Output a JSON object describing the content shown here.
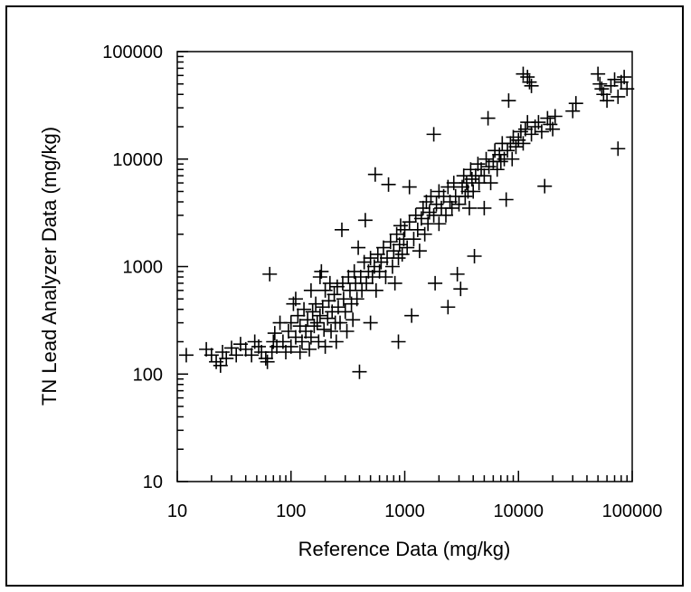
{
  "chart_data": {
    "type": "scatter",
    "title": "",
    "xlabel": "Reference Data (mg/kg)",
    "ylabel": "TN Lead Analyzer Data (mg/kg)",
    "xscale": "log",
    "yscale": "log",
    "xlim": [
      10,
      100000
    ],
    "ylim": [
      10,
      100000
    ],
    "xticks": [
      "10",
      "100",
      "1000",
      "10000",
      "100000"
    ],
    "yticks": [
      "10",
      "100",
      "1000",
      "10000",
      "100000"
    ],
    "marker": "plus",
    "color": "#000000",
    "grid": false,
    "legend": false,
    "series": [
      {
        "points": [
          [
            12,
            150
          ],
          [
            18,
            170
          ],
          [
            20,
            150
          ],
          [
            22,
            130
          ],
          [
            24,
            120
          ],
          [
            25,
            160
          ],
          [
            27,
            140
          ],
          [
            30,
            175
          ],
          [
            33,
            150
          ],
          [
            36,
            190
          ],
          [
            40,
            170
          ],
          [
            45,
            150
          ],
          [
            48,
            200
          ],
          [
            52,
            180
          ],
          [
            55,
            160
          ],
          [
            60,
            140
          ],
          [
            62,
            130
          ],
          [
            65,
            850
          ],
          [
            68,
            160
          ],
          [
            70,
            200
          ],
          [
            72,
            240
          ],
          [
            75,
            180
          ],
          [
            80,
            300
          ],
          [
            85,
            200
          ],
          [
            90,
            160
          ],
          [
            95,
            250
          ],
          [
            100,
            300
          ],
          [
            100,
            180
          ],
          [
            105,
            450
          ],
          [
            110,
            500
          ],
          [
            110,
            220
          ],
          [
            115,
            350
          ],
          [
            120,
            280
          ],
          [
            120,
            160
          ],
          [
            125,
            200
          ],
          [
            130,
            400
          ],
          [
            135,
            250
          ],
          [
            140,
            320
          ],
          [
            145,
            170
          ],
          [
            150,
            600
          ],
          [
            150,
            220
          ],
          [
            155,
            380
          ],
          [
            160,
            280
          ],
          [
            165,
            450
          ],
          [
            170,
            300
          ],
          [
            175,
            200
          ],
          [
            180,
            800
          ],
          [
            180,
            350
          ],
          [
            185,
            900
          ],
          [
            190,
            420
          ],
          [
            195,
            260
          ],
          [
            200,
            600
          ],
          [
            200,
            180
          ],
          [
            210,
            330
          ],
          [
            215,
            480
          ],
          [
            220,
            700
          ],
          [
            225,
            250
          ],
          [
            230,
            380
          ],
          [
            240,
            550
          ],
          [
            245,
            300
          ],
          [
            250,
            200
          ],
          [
            255,
            650
          ],
          [
            260,
            420
          ],
          [
            270,
            300
          ],
          [
            280,
            2200
          ],
          [
            285,
            700
          ],
          [
            290,
            500
          ],
          [
            300,
            380
          ],
          [
            310,
            250
          ],
          [
            320,
            800
          ],
          [
            330,
            600
          ],
          [
            340,
            450
          ],
          [
            350,
            320
          ],
          [
            360,
            900
          ],
          [
            370,
            700
          ],
          [
            380,
            500
          ],
          [
            390,
            1500
          ],
          [
            400,
            105
          ],
          [
            410,
            800
          ],
          [
            420,
            600
          ],
          [
            440,
            1100
          ],
          [
            450,
            2700
          ],
          [
            460,
            700
          ],
          [
            480,
            900
          ],
          [
            500,
            300
          ],
          [
            500,
            1200
          ],
          [
            520,
            800
          ],
          [
            540,
            1000
          ],
          [
            550,
            7200
          ],
          [
            560,
            600
          ],
          [
            580,
            1300
          ],
          [
            600,
            900
          ],
          [
            620,
            1100
          ],
          [
            650,
            1500
          ],
          [
            680,
            800
          ],
          [
            700,
            1200
          ],
          [
            720,
            5800
          ],
          [
            750,
            1700
          ],
          [
            780,
            1000
          ],
          [
            800,
            1400
          ],
          [
            820,
            700
          ],
          [
            850,
            2000
          ],
          [
            880,
            1200
          ],
          [
            880,
            200
          ],
          [
            900,
            1600
          ],
          [
            920,
            2400
          ],
          [
            950,
            1300
          ],
          [
            980,
            1800
          ],
          [
            1000,
            2200
          ],
          [
            1050,
            1500
          ],
          [
            1100,
            2600
          ],
          [
            1100,
            5500
          ],
          [
            1150,
            350
          ],
          [
            1200,
            1800
          ],
          [
            1250,
            3000
          ],
          [
            1300,
            2200
          ],
          [
            1350,
            1400
          ],
          [
            1400,
            2800
          ],
          [
            1450,
            3500
          ],
          [
            1500,
            2000
          ],
          [
            1550,
            4000
          ],
          [
            1600,
            2500
          ],
          [
            1650,
            3200
          ],
          [
            1700,
            4500
          ],
          [
            1800,
            3000
          ],
          [
            1800,
            17000
          ],
          [
            1850,
            700
          ],
          [
            1900,
            3800
          ],
          [
            2000,
            2500
          ],
          [
            2000,
            5000
          ],
          [
            2100,
            3500
          ],
          [
            2200,
            4500
          ],
          [
            2300,
            3000
          ],
          [
            2400,
            420
          ],
          [
            2400,
            5500
          ],
          [
            2500,
            4000
          ],
          [
            2600,
            3500
          ],
          [
            2700,
            6000
          ],
          [
            2800,
            4500
          ],
          [
            2900,
            850
          ],
          [
            3000,
            3800
          ],
          [
            3100,
            620
          ],
          [
            3200,
            5500
          ],
          [
            3300,
            7000
          ],
          [
            3400,
            4500
          ],
          [
            3500,
            6000
          ],
          [
            3600,
            5000
          ],
          [
            3700,
            3500
          ],
          [
            3800,
            8000
          ],
          [
            3900,
            6500
          ],
          [
            4000,
            5000
          ],
          [
            4100,
            1250
          ],
          [
            4200,
            7000
          ],
          [
            4400,
            9000
          ],
          [
            4500,
            6000
          ],
          [
            4700,
            8000
          ],
          [
            5000,
            7000
          ],
          [
            5000,
            3500
          ],
          [
            5200,
            10000
          ],
          [
            5400,
            24000
          ],
          [
            5500,
            8500
          ],
          [
            5700,
            6000
          ],
          [
            6000,
            9500
          ],
          [
            6200,
            12000
          ],
          [
            6500,
            8000
          ],
          [
            6800,
            11000
          ],
          [
            7000,
            9500
          ],
          [
            7200,
            14000
          ],
          [
            7500,
            10000
          ],
          [
            7800,
            4200
          ],
          [
            8000,
            12000
          ],
          [
            8200,
            35000
          ],
          [
            8500,
            14000
          ],
          [
            8800,
            10000
          ],
          [
            9000,
            16000
          ],
          [
            9500,
            13000
          ],
          [
            10000,
            15000
          ],
          [
            10500,
            18000
          ],
          [
            11000,
            62000
          ],
          [
            11000,
            14000
          ],
          [
            11500,
            19000
          ],
          [
            12000,
            58000
          ],
          [
            12000,
            22000
          ],
          [
            12500,
            52000
          ],
          [
            13000,
            48000
          ],
          [
            13000,
            17000
          ],
          [
            14000,
            20000
          ],
          [
            15000,
            22000
          ],
          [
            16000,
            18000
          ],
          [
            17000,
            5600
          ],
          [
            18000,
            24000
          ],
          [
            19000,
            21000
          ],
          [
            20000,
            19000
          ],
          [
            21000,
            25000
          ],
          [
            30000,
            28000
          ],
          [
            32000,
            33000
          ],
          [
            50000,
            62000
          ],
          [
            52000,
            50000
          ],
          [
            54000,
            45000
          ],
          [
            56000,
            40000
          ],
          [
            60000,
            35000
          ],
          [
            65000,
            48000
          ],
          [
            70000,
            55000
          ],
          [
            75000,
            12500
          ],
          [
            75000,
            38000
          ],
          [
            80000,
            52000
          ],
          [
            85000,
            58000
          ],
          [
            90000,
            45000
          ]
        ]
      }
    ]
  }
}
